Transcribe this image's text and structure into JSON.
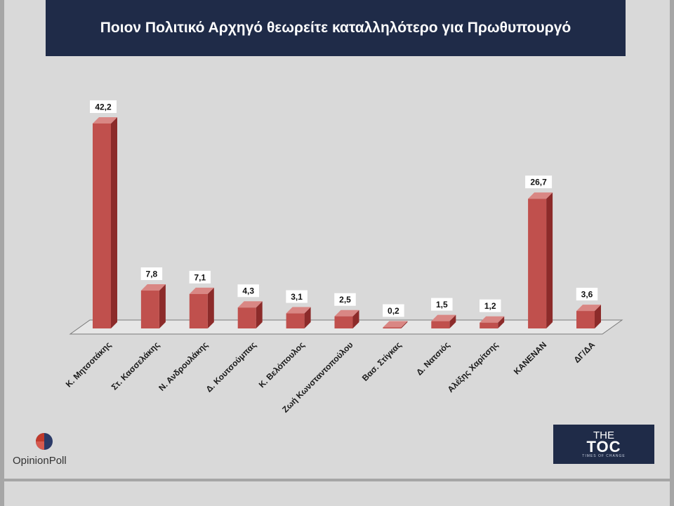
{
  "title": "Ποιον Πολιτικό Αρχηγό θεωρείτε καταλληλότερο για Πρωθυπουργό",
  "colors": {
    "banner": "#1f2b48",
    "bar_front": "#c0504d",
    "bar_side": "#8c2b2a",
    "bar_top": "#d98784",
    "background": "#d9d9d9"
  },
  "chart_data": {
    "type": "bar",
    "title": "Ποιον Πολιτικό Αρχηγό θεωρείτε καταλληλότερο για Πρωθυπουργό",
    "categories": [
      "Κ. Μητσοτάκης",
      "Στ. Κασσελάκης",
      "Ν. Ανδρουλάκης",
      "Δ. Κουτσούμπας",
      "Κ. Βελόπουλος",
      "Ζωή Κωνσταντοπούλου",
      "Βασ. Στίγκας",
      "Δ. Νατσιός",
      "Αλέξης Χαρίτσης",
      "ΚΑΝΕΝΑΝ",
      "ΔΓ/ΔΑ"
    ],
    "values": [
      42.2,
      7.8,
      7.1,
      4.3,
      3.1,
      2.5,
      0.2,
      1.5,
      1.2,
      26.7,
      3.6
    ],
    "value_labels": [
      "42,2",
      "7,8",
      "7,1",
      "4,3",
      "3,1",
      "2,5",
      "0,2",
      "1,5",
      "1,2",
      "26,7",
      "3,6"
    ],
    "ylim": [
      0,
      45
    ],
    "style": "3d-column",
    "grid": false,
    "legend": "none",
    "xlabel": "",
    "ylabel": ""
  },
  "logos": {
    "opinion_poll": "OpinionPoll",
    "toc_the": "THE",
    "toc_main": "TOC",
    "toc_tagline": "TIMES OF CHANGE"
  }
}
